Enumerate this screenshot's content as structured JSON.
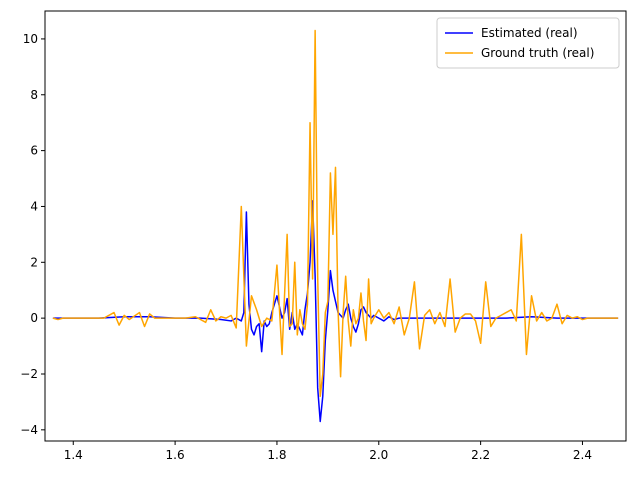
{
  "chart_data": {
    "type": "line",
    "title": "",
    "xlabel": "",
    "ylabel": "",
    "xlim": [
      1.3445,
      2.4855
    ],
    "ylim": [
      -4.4,
      11.0
    ],
    "xticks": [
      1.4,
      1.6,
      1.8,
      2.0,
      2.2,
      2.4
    ],
    "xtick_labels": [
      "1.4",
      "1.6",
      "1.8",
      "2.0",
      "2.2",
      "2.4"
    ],
    "yticks": [
      -4,
      -2,
      0,
      2,
      4,
      6,
      8,
      10
    ],
    "ytick_labels": [
      "−4",
      "−2",
      "0",
      "2",
      "4",
      "6",
      "8",
      "10"
    ],
    "grid": false,
    "legend_position": "top-right",
    "series": [
      {
        "name": "Estimated (real)",
        "color": "#0000ff",
        "x": [
          1.36,
          1.4,
          1.45,
          1.5,
          1.55,
          1.6,
          1.65,
          1.69,
          1.71,
          1.72,
          1.73,
          1.735,
          1.74,
          1.745,
          1.75,
          1.755,
          1.76,
          1.765,
          1.77,
          1.775,
          1.78,
          1.785,
          1.79,
          1.795,
          1.8,
          1.805,
          1.81,
          1.815,
          1.82,
          1.825,
          1.83,
          1.835,
          1.84,
          1.845,
          1.85,
          1.855,
          1.86,
          1.865,
          1.87,
          1.875,
          1.88,
          1.885,
          1.89,
          1.895,
          1.9,
          1.905,
          1.91,
          1.915,
          1.92,
          1.925,
          1.93,
          1.935,
          1.94,
          1.945,
          1.95,
          1.955,
          1.96,
          1.965,
          1.97,
          1.975,
          1.98,
          1.985,
          1.99,
          2.0,
          2.01,
          2.02,
          2.03,
          2.04,
          2.06,
          2.1,
          2.15,
          2.2,
          2.25,
          2.3,
          2.35,
          2.4,
          2.47
        ],
        "values": [
          0,
          0,
          0,
          0.05,
          0.05,
          0,
          0,
          -0.05,
          -0.1,
          0,
          -0.1,
          0.2,
          3.8,
          0.5,
          -0.4,
          -0.6,
          -0.3,
          -0.2,
          -1.2,
          -0.1,
          -0.3,
          -0.2,
          0.2,
          0.5,
          0.8,
          0.4,
          0,
          0.2,
          0.7,
          -0.4,
          0.2,
          -0.4,
          -0.2,
          -0.4,
          -0.6,
          0.3,
          0.9,
          2.0,
          4.2,
          1.5,
          -2.5,
          -3.7,
          -2.8,
          -0.8,
          0.3,
          1.7,
          1.0,
          0.6,
          0.2,
          0.1,
          0.0,
          0.3,
          0.5,
          0,
          -0.3,
          -0.5,
          -0.2,
          0.3,
          0.4,
          0.2,
          0.1,
          0.0,
          0.1,
          0,
          -0.1,
          0.05,
          -0.05,
          0,
          0,
          0,
          0,
          0,
          0,
          0.05,
          0,
          0,
          0
        ]
      },
      {
        "name": "Ground truth (real)",
        "color": "#ffa500",
        "x": [
          1.36,
          1.37,
          1.38,
          1.4,
          1.44,
          1.46,
          1.48,
          1.49,
          1.5,
          1.51,
          1.53,
          1.54,
          1.55,
          1.56,
          1.58,
          1.6,
          1.62,
          1.64,
          1.66,
          1.67,
          1.68,
          1.69,
          1.7,
          1.71,
          1.72,
          1.73,
          1.74,
          1.75,
          1.76,
          1.77,
          1.78,
          1.79,
          1.8,
          1.81,
          1.82,
          1.825,
          1.83,
          1.835,
          1.84,
          1.845,
          1.85,
          1.855,
          1.86,
          1.865,
          1.87,
          1.875,
          1.88,
          1.885,
          1.89,
          1.895,
          1.9,
          1.905,
          1.91,
          1.915,
          1.92,
          1.925,
          1.93,
          1.935,
          1.94,
          1.945,
          1.95,
          1.955,
          1.96,
          1.965,
          1.97,
          1.975,
          1.98,
          1.985,
          1.99,
          2.0,
          2.01,
          2.02,
          2.03,
          2.04,
          2.05,
          2.06,
          2.07,
          2.08,
          2.09,
          2.1,
          2.11,
          2.12,
          2.13,
          2.14,
          2.15,
          2.16,
          2.17,
          2.18,
          2.19,
          2.2,
          2.21,
          2.22,
          2.23,
          2.24,
          2.25,
          2.26,
          2.27,
          2.28,
          2.29,
          2.3,
          2.31,
          2.32,
          2.33,
          2.34,
          2.35,
          2.36,
          2.37,
          2.38,
          2.39,
          2.4,
          2.41,
          2.42,
          2.43,
          2.44,
          2.45,
          2.46,
          2.47
        ],
        "values": [
          0,
          -0.05,
          0,
          0,
          0,
          0,
          0.2,
          -0.25,
          0.1,
          -0.05,
          0.2,
          -0.3,
          0.15,
          0,
          0,
          0,
          0,
          0.05,
          -0.15,
          0.3,
          -0.1,
          0.05,
          0,
          0.1,
          -0.35,
          4.0,
          -1.0,
          0.8,
          0.3,
          -0.3,
          0,
          -0.1,
          1.9,
          -1.3,
          3.0,
          -0.3,
          -0.2,
          2.0,
          -0.6,
          0.3,
          -0.2,
          -0.4,
          0.5,
          7.0,
          1.4,
          10.3,
          1.5,
          -2.8,
          -2.0,
          0.2,
          0.6,
          5.2,
          3.0,
          5.4,
          0.3,
          -2.1,
          0.2,
          1.5,
          -0.1,
          -1.0,
          0.3,
          -0.2,
          0.0,
          0.9,
          -0.1,
          -0.8,
          1.4,
          -0.2,
          0,
          0.3,
          0,
          0.2,
          -0.2,
          0.4,
          -0.6,
          0,
          1.3,
          -1.1,
          0.1,
          0.3,
          -0.2,
          0.2,
          -0.3,
          1.4,
          -0.5,
          0,
          0.15,
          0.15,
          -0.1,
          -0.9,
          1.3,
          -0.3,
          0,
          0.1,
          0.2,
          0.3,
          -0.1,
          3.0,
          -1.3,
          0.8,
          -0.1,
          0.2,
          -0.1,
          0,
          0.5,
          -0.2,
          0.1,
          0,
          0.05,
          -0.05,
          0,
          0,
          0,
          0,
          0,
          0,
          0
        ]
      }
    ]
  }
}
